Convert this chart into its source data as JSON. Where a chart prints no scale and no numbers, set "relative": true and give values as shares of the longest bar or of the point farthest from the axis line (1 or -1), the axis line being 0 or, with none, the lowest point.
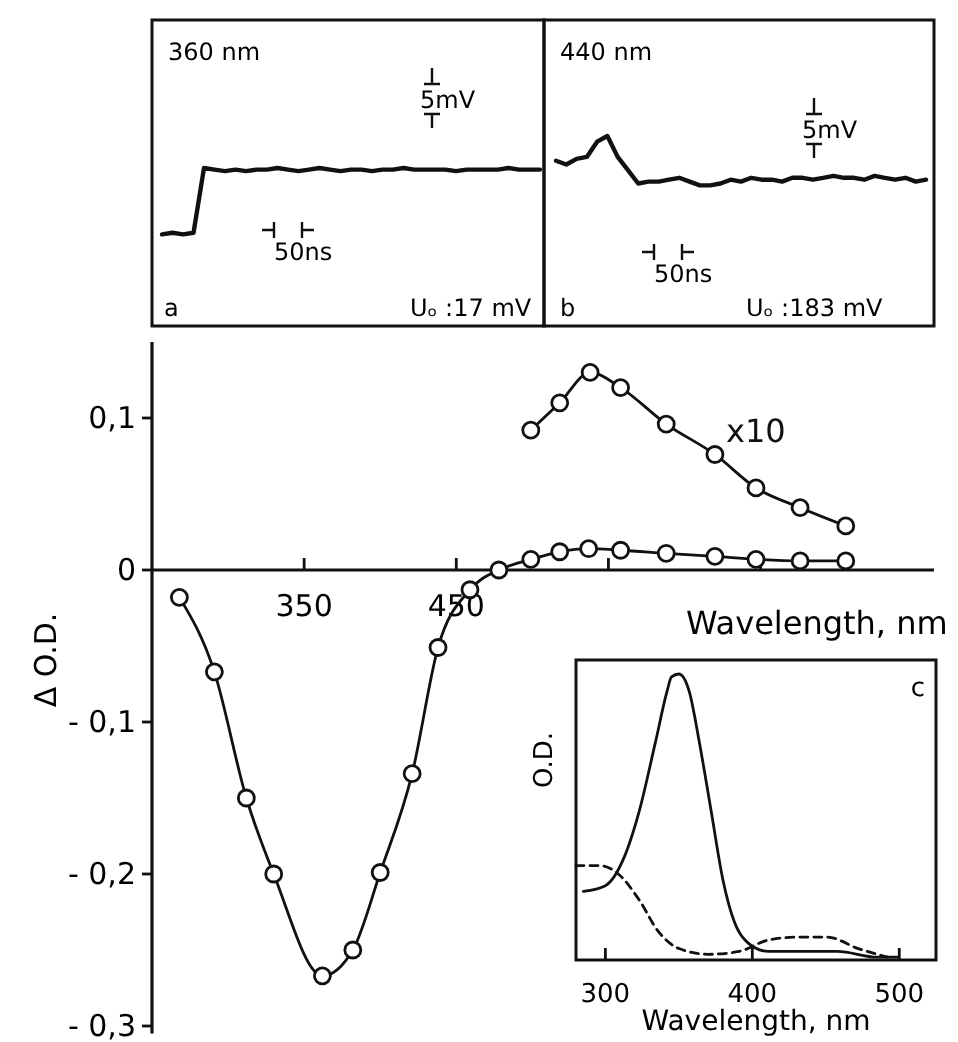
{
  "chart_data": [
    {
      "type": "line",
      "relative": true,
      "categories": [
        null,
        null,
        null,
        null,
        null,
        null,
        null,
        null,
        null,
        null,
        null,
        null,
        null,
        null,
        null,
        null,
        null,
        null,
        null,
        null,
        null,
        null,
        null,
        null,
        null,
        null,
        null,
        null,
        null,
        null,
        null,
        null,
        null,
        null,
        null,
        null,
        null
      ],
      "series": [
        {
          "color": "#111111",
          "values": [
            0.58,
            0.59,
            0.58,
            0.59,
            1,
            0.99,
            0.98,
            0.99,
            0.98,
            0.99,
            0.99,
            1,
            0.99,
            0.98,
            0.99,
            1,
            0.99,
            0.98,
            0.99,
            0.99,
            0.98,
            0.99,
            0.99,
            1,
            0.99,
            0.99,
            0.99,
            0.99,
            0.98,
            0.99,
            0.99,
            0.99,
            0.99,
            1,
            0.99,
            0.99,
            0.99
          ]
        }
      ],
      "annotations": [
        "360 nm",
        "5mV",
        "50ns",
        "a",
        "Uₒ :17 mV"
      ]
    },
    {
      "type": "line",
      "relative": true,
      "categories": [
        null,
        null,
        null,
        null,
        null,
        null,
        null,
        null,
        null,
        null,
        null,
        null,
        null,
        null,
        null,
        null,
        null,
        null,
        null,
        null,
        null,
        null,
        null,
        null,
        null,
        null,
        null,
        null,
        null,
        null,
        null,
        null,
        null,
        null,
        null,
        null,
        null
      ],
      "series": [
        {
          "color": "#111111",
          "values": [
            0.87,
            0.85,
            0.88,
            0.89,
            0.97,
            1,
            0.89,
            0.82,
            0.75,
            0.76,
            0.76,
            0.77,
            0.78,
            0.76,
            0.74,
            0.74,
            0.75,
            0.77,
            0.76,
            0.78,
            0.77,
            0.77,
            0.76,
            0.78,
            0.78,
            0.77,
            0.78,
            0.79,
            0.78,
            0.78,
            0.77,
            0.79,
            0.78,
            0.77,
            0.78,
            0.76,
            0.77
          ]
        }
      ],
      "annotations": [
        "440 nm",
        "5mV",
        "50ns",
        "b",
        "Uₒ :183 mV"
      ]
    },
    {
      "type": "line",
      "xlabel": "Wavelength, nm",
      "ylabel": "Δ O.D.",
      "xlim": [
        250,
        764
      ],
      "ylim": [
        -0.305,
        0.15
      ],
      "xticks": [
        350,
        450,
        {
          "value": 550,
          "label": null
        },
        {
          "value": 650,
          "label": null
        }
      ],
      "yticks": [
        {
          "value": -0.3,
          "label": "- 0,3"
        },
        {
          "value": -0.2,
          "label": "- 0,2"
        },
        {
          "value": -0.1,
          "label": "- 0,1"
        },
        0,
        {
          "value": 0.1,
          "label": "0,1"
        }
      ],
      "marker": "circle",
      "x": [
        268,
        291,
        312,
        330,
        362,
        382,
        400,
        421,
        438,
        459,
        478,
        499,
        518,
        537,
        558,
        588,
        620,
        647,
        676,
        706
      ],
      "series": [
        {
          "color": "#111111",
          "values": [
            -0.018,
            -0.067,
            -0.15,
            -0.2,
            -0.267,
            -0.25,
            -0.199,
            -0.134,
            -0.051,
            -0.013,
            0,
            0.007,
            0.012,
            0.014,
            0.013,
            0.011,
            0.009,
            0.007,
            0.006,
            0.006
          ]
        },
        {
          "name": "x10",
          "color": "#111111",
          "x": [
            499,
            518,
            538,
            558,
            588,
            620,
            647,
            676,
            706
          ],
          "values": [
            0.092,
            0.11,
            0.13,
            0.12,
            0.096,
            0.076,
            0.054,
            0.041,
            0.029
          ]
        }
      ]
    },
    {
      "type": "line",
      "relative": true,
      "xlabel": "Wavelength, nm",
      "ylabel": "O.D.",
      "xlim": [
        280,
        525
      ],
      "xticks": [
        300,
        400,
        500
      ],
      "tick_labels": "x",
      "series": [
        {
          "color": "#111111",
          "line_style": "solid",
          "x": [
            285,
            300,
            312,
            323,
            334,
            342,
            345,
            350,
            357,
            364,
            372,
            380,
            388,
            397,
            411,
            431,
            458,
            485,
            499
          ],
          "values": [
            0.24,
            0.26,
            0.35,
            0.52,
            0.76,
            0.94,
            0.99,
            1,
            0.94,
            0.76,
            0.52,
            0.28,
            0.13,
            0.06,
            0.03,
            0.03,
            0.03,
            0.01,
            0.01
          ]
        },
        {
          "color": "#111111",
          "line_style": "dashed",
          "x": [
            280,
            296,
            309,
            323,
            336,
            350,
            370,
            391,
            411,
            431,
            451,
            472,
            492
          ],
          "values": [
            0.33,
            0.33,
            0.3,
            0.21,
            0.1,
            0.04,
            0.02,
            0.03,
            0.07,
            0.08,
            0.08,
            0.04,
            0.01
          ]
        }
      ],
      "annotations": [
        "c"
      ]
    }
  ]
}
